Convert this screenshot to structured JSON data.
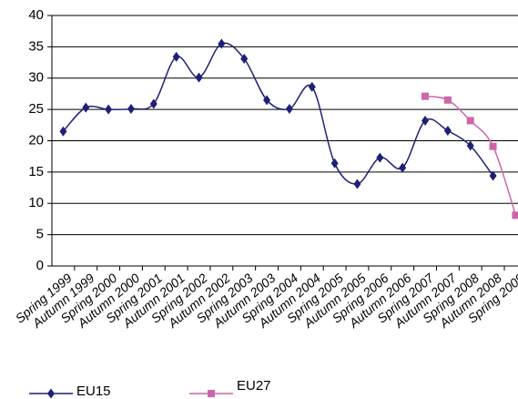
{
  "chart_data": {
    "type": "line",
    "categories": [
      "Spring 1999",
      "Autumn 1999",
      "Spring 2000",
      "Autumn 2000",
      "Spring 2001",
      "Autumn 2001",
      "Spring 2002",
      "Autumn 2002",
      "Spring 2003",
      "Autumn 2003",
      "Spring 2004",
      "Autumn 2004",
      "Spring 2005",
      "Autumn 2005",
      "Spring 2006",
      "Autumn 2006",
      "Spring 2007",
      "Autumn 2007",
      "Spring 2008",
      "Autumn 2008",
      "Spring 2009"
    ],
    "series": [
      {
        "name": "EU15",
        "color": "#1f1f78",
        "marker": "diamond",
        "values": [
          21.5,
          25.3,
          25,
          25.1,
          25.9,
          33.4,
          30.1,
          35.5,
          33.1,
          26.5,
          25.1,
          28.6,
          16.4,
          13.1,
          17.3,
          15.7,
          23.2,
          21.6,
          19.2,
          14.4,
          null
        ]
      },
      {
        "name": "EU27",
        "color": "#cc66aa",
        "marker": "square",
        "values": [
          null,
          null,
          null,
          null,
          null,
          null,
          null,
          null,
          null,
          null,
          null,
          null,
          null,
          null,
          null,
          null,
          27.1,
          26.5,
          23.2,
          19.1,
          8.1
        ]
      }
    ],
    "ylim": [
      0,
      40
    ],
    "yticks": [
      0,
      5,
      10,
      15,
      20,
      25,
      30,
      35,
      40
    ],
    "grid": true
  }
}
